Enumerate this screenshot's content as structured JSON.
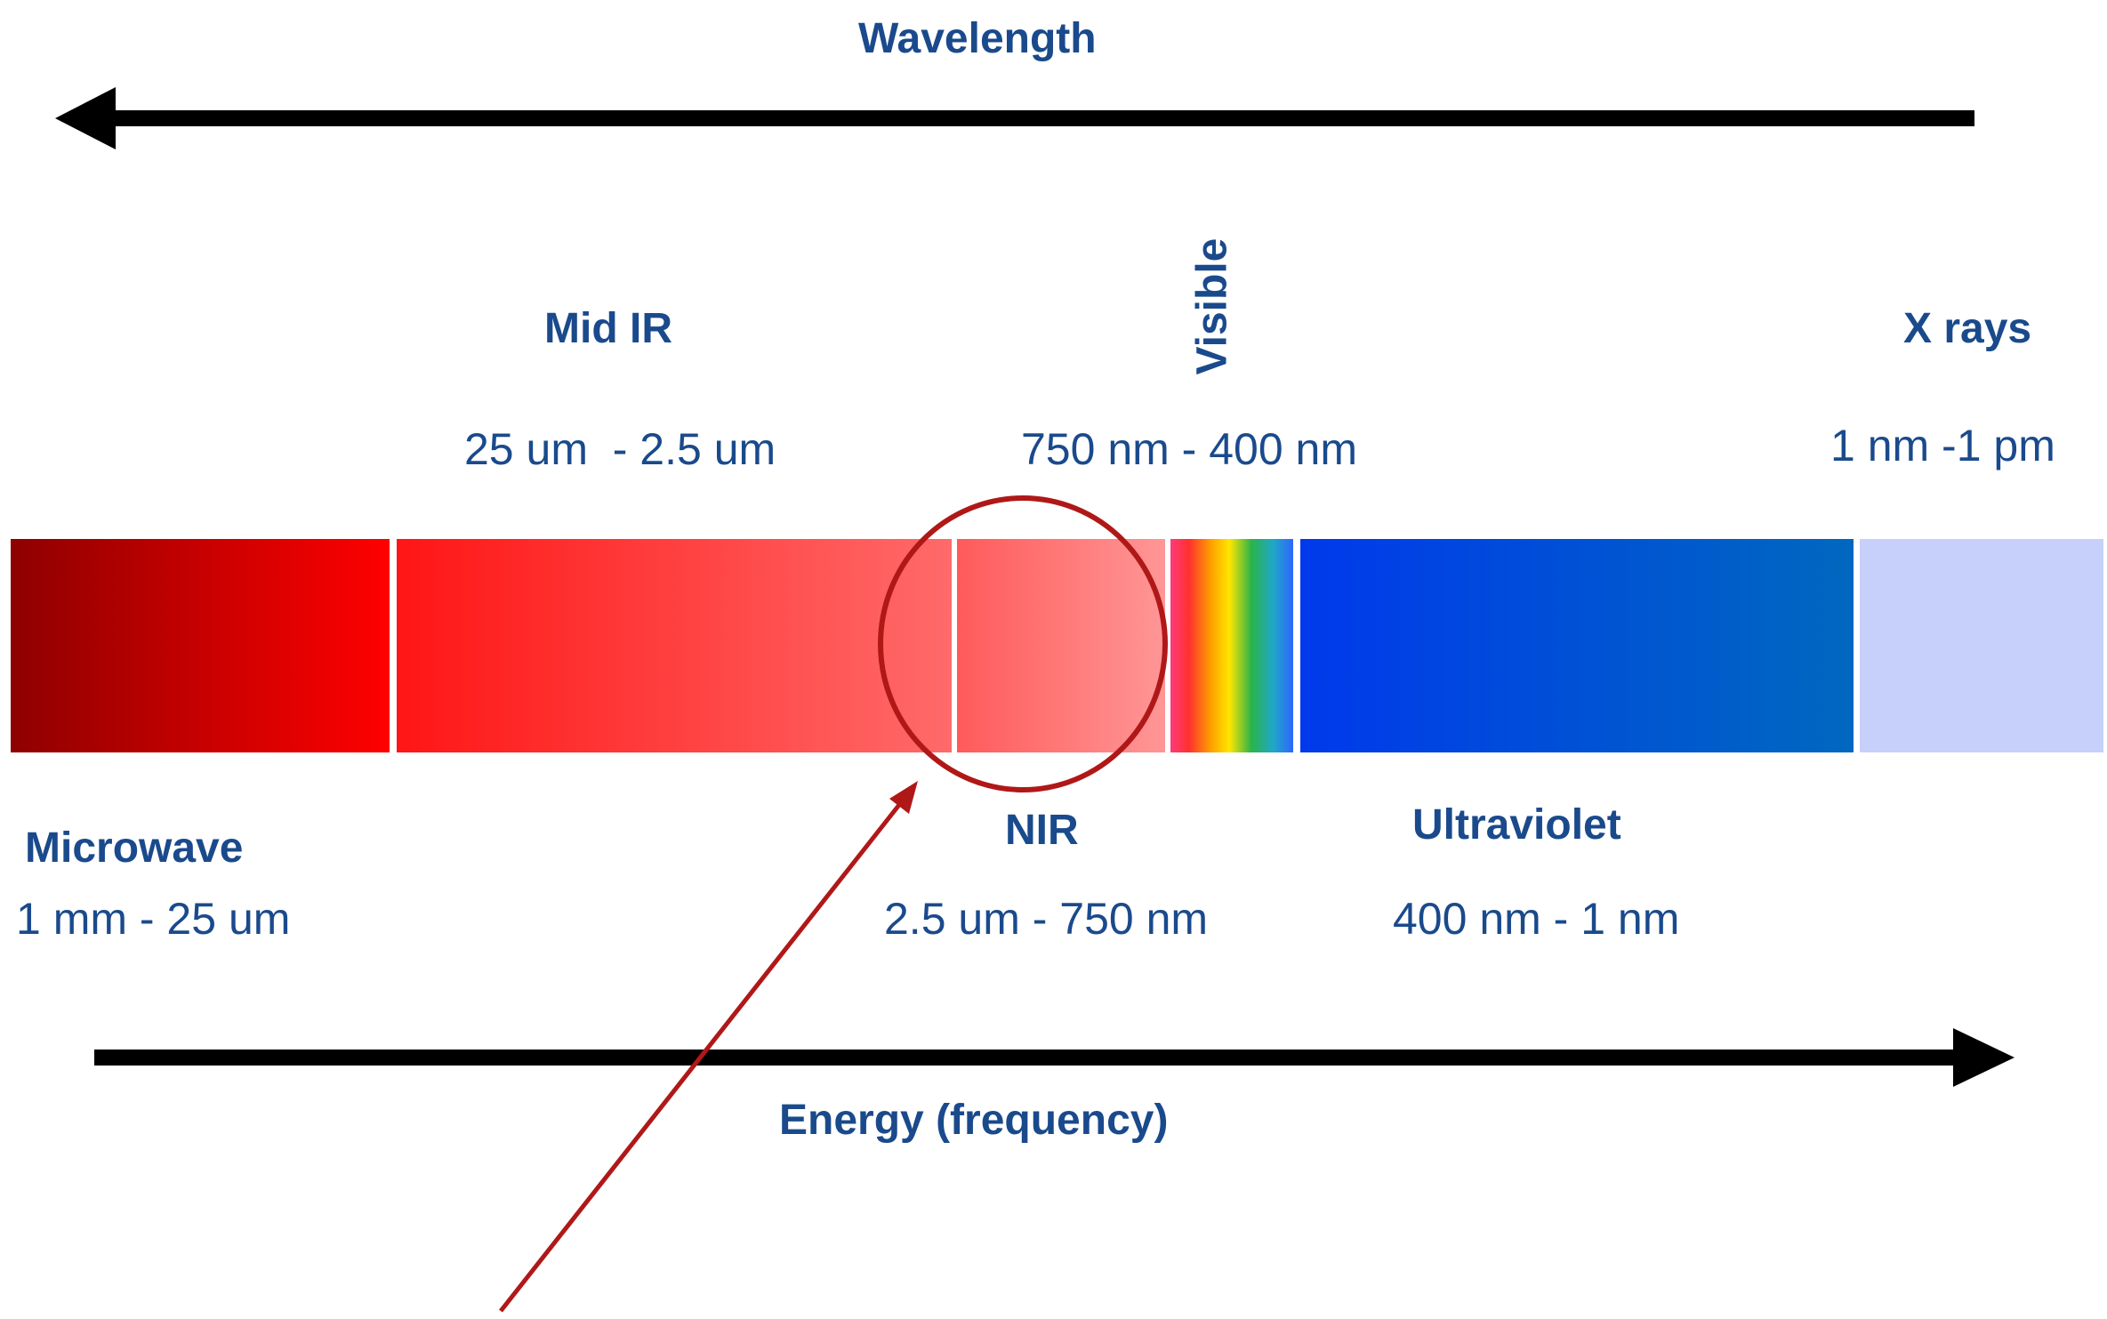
{
  "top_arrow_label": "Wavelength",
  "bottom_arrow_label": "Energy (frequency)",
  "colors": {
    "text": "#1a4a8c",
    "arrow": "#000000",
    "highlight": "#b01818"
  },
  "bands": [
    {
      "name": "Microwave",
      "range": "1 mm - 25 um",
      "gradient": [
        "#8e0000",
        "#ff0000"
      ]
    },
    {
      "name": "Mid IR",
      "range": "25 um  - 2.5 um",
      "gradient": [
        "#ff1515",
        "#ff6a6a"
      ]
    },
    {
      "name": "NIR",
      "range": "2.5 um - 750 nm",
      "gradient": [
        "#ff5a5a",
        "#ff9696"
      ]
    },
    {
      "name": "Visible",
      "range": "750 nm - 400 nm",
      "gradient": [
        "#ff3b7a",
        "#ffe100",
        "#2ab44a",
        "#2f66ff"
      ]
    },
    {
      "name": "Ultraviolet",
      "range": "400 nm - 1 nm",
      "gradient": [
        "#0039ec",
        "#0068bf"
      ]
    },
    {
      "name": "X rays",
      "range": "1 nm -1 pm",
      "gradient": [
        "#c7d0fb",
        "#c7d0fb"
      ]
    }
  ]
}
